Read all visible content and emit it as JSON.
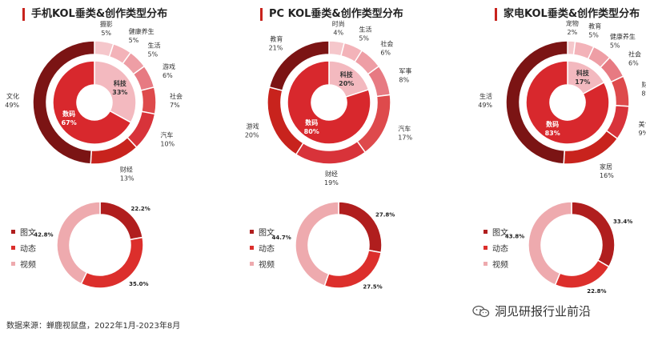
{
  "colors": {
    "accent": "#c8231d",
    "outer": [
      "#f5c7cb",
      "#f3b3b9",
      "#ee9ea5",
      "#e77a82",
      "#de4a4c",
      "#d8333a",
      "#c8231d",
      "#a11c1c",
      "#7b1414"
    ],
    "inner_small": "#f3b9bf",
    "inner_big": "#d8282d",
    "ring": {
      "图文": "#b01e1e",
      "动态": "#dc2f2c",
      "视频": "#eeaaae"
    }
  },
  "footer": {
    "source": "数据来源：蝉鹿视鼠盘，2022年1月-2023年8月",
    "brand": "洞见研报行业前沿",
    "brand_icon": "wechat-icon"
  },
  "chart_data": [
    {
      "type": "pie",
      "title": "手机KOL垂类&创作类型分布",
      "outer": [
        {
          "label": "摄影",
          "value": 5
        },
        {
          "label": "健康养生",
          "value": 5
        },
        {
          "label": "生活",
          "value": 5
        },
        {
          "label": "游戏",
          "value": 6
        },
        {
          "label": "社会",
          "value": 7
        },
        {
          "label": "汽车",
          "value": 10
        },
        {
          "label": "财经",
          "value": 13
        },
        {
          "label": "文化",
          "value": 49
        }
      ],
      "inner": [
        {
          "label": "科技",
          "value": 33
        },
        {
          "label": "数码",
          "value": 67
        }
      ],
      "ring": [
        {
          "label": "图文",
          "value": 22.2
        },
        {
          "label": "动态",
          "value": 35.0
        },
        {
          "label": "视频",
          "value": 42.8
        }
      ],
      "legend": [
        "图文",
        "动态",
        "视频"
      ]
    },
    {
      "type": "pie",
      "title": "PC KOL垂类&创作类型分布",
      "outer": [
        {
          "label": "时尚",
          "value": 4
        },
        {
          "label": "生活",
          "value": 5
        },
        {
          "label": "社会",
          "value": 6
        },
        {
          "label": "军事",
          "value": 8
        },
        {
          "label": "汽车",
          "value": 17
        },
        {
          "label": "财经",
          "value": 19
        },
        {
          "label": "游戏",
          "value": 20
        },
        {
          "label": "教育",
          "value": 21
        }
      ],
      "inner": [
        {
          "label": "科技",
          "value": 20
        },
        {
          "label": "数码",
          "value": 80
        }
      ],
      "ring": [
        {
          "label": "图文",
          "value": 27.8
        },
        {
          "label": "动态",
          "value": 27.5
        },
        {
          "label": "视频",
          "value": 44.7
        }
      ],
      "legend": [
        "图文",
        "动态",
        "视频"
      ]
    },
    {
      "type": "pie",
      "title": "家电KOL垂类&创作类型分布",
      "outer": [
        {
          "label": "宠物",
          "value": 2
        },
        {
          "label": "教育",
          "value": 5
        },
        {
          "label": "健康养生",
          "value": 5
        },
        {
          "label": "社会",
          "value": 6
        },
        {
          "label": "财经",
          "value": 8
        },
        {
          "label": "美食",
          "value": 9
        },
        {
          "label": "家居",
          "value": 16
        },
        {
          "label": "生活",
          "value": 49
        }
      ],
      "inner": [
        {
          "label": "科技",
          "value": 17
        },
        {
          "label": "数码",
          "value": 83
        }
      ],
      "ring": [
        {
          "label": "图文",
          "value": 33.4
        },
        {
          "label": "动态",
          "value": 22.8
        },
        {
          "label": "视频",
          "value": 43.8
        }
      ],
      "legend": [
        "图文",
        "动态",
        "视频"
      ]
    }
  ]
}
